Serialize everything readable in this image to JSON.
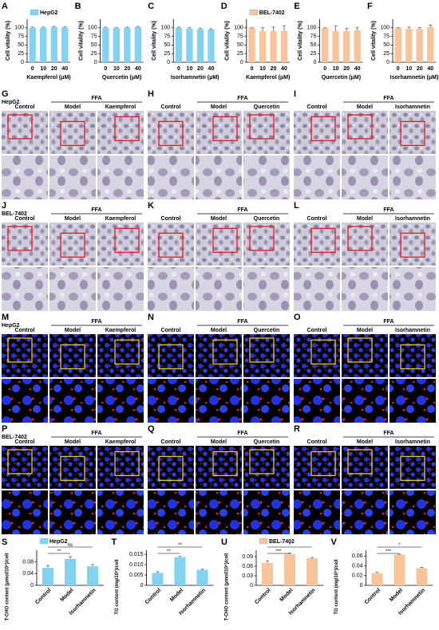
{
  "chart_data": [
    {
      "type": "bar",
      "label": "A",
      "legend": "HepG2",
      "color": "#83d2f2",
      "categories": [
        "0",
        "10",
        "20",
        "40"
      ],
      "values": [
        100,
        100,
        102,
        101
      ],
      "errors": [
        2,
        2,
        2,
        2
      ],
      "xlabel": "Kaempferol (μM)",
      "ylabel": "Cell vitality (%)",
      "ylim": [
        0,
        125
      ],
      "yticks": [
        0,
        25,
        50,
        75,
        100
      ]
    },
    {
      "type": "bar",
      "label": "B",
      "color": "#83d2f2",
      "categories": [
        "0",
        "10",
        "20",
        "40"
      ],
      "values": [
        100,
        99,
        100,
        102
      ],
      "errors": [
        2,
        2,
        2,
        2
      ],
      "xlabel": "Quercetin (μM)",
      "ylabel": "Cell vitality (%)",
      "ylim": [
        0,
        125
      ],
      "yticks": [
        0,
        25,
        50,
        75,
        100
      ]
    },
    {
      "type": "bar",
      "label": "C",
      "color": "#83d2f2",
      "categories": [
        "0",
        "10",
        "20",
        "40"
      ],
      "values": [
        100,
        98,
        96,
        95
      ],
      "errors": [
        2,
        3,
        3,
        2
      ],
      "xlabel": "Isorhamnetin (μM)",
      "ylabel": "Cell vitality (%)",
      "ylim": [
        0,
        125
      ],
      "yticks": [
        0,
        25,
        50,
        75,
        100
      ]
    },
    {
      "type": "bar",
      "label": "D",
      "legend": "BEL-7402",
      "color": "#f9c49a",
      "categories": [
        "0",
        "10",
        "20",
        "40"
      ],
      "values": [
        100,
        90,
        90,
        90
      ],
      "errors": [
        0,
        10,
        12,
        15
      ],
      "xlabel": "Kaempferol (μM)",
      "ylabel": "Cell vitality (%)",
      "ylim": [
        0,
        125
      ],
      "yticks": [
        0,
        25,
        50,
        75,
        100
      ]
    },
    {
      "type": "bar",
      "label": "E",
      "color": "#f9c49a",
      "categories": [
        "0",
        "10",
        "20",
        "40"
      ],
      "values": [
        100,
        90,
        90,
        93
      ],
      "errors": [
        0,
        15,
        8,
        8
      ],
      "xlabel": "Quercetin (μM)",
      "ylabel": "Cell vitality (%)",
      "ylim": [
        0,
        125
      ],
      "yticks": [
        0,
        25,
        50,
        75,
        100
      ]
    },
    {
      "type": "bar",
      "label": "F",
      "color": "#f9c49a",
      "categories": [
        "0",
        "10",
        "20",
        "40"
      ],
      "values": [
        100,
        97,
        97,
        103
      ],
      "errors": [
        0,
        5,
        4,
        5
      ],
      "xlabel": "Isorhamnetin (μM)",
      "ylabel": "Cell vitality (%)",
      "ylim": [
        0,
        125
      ],
      "yticks": [
        0,
        25,
        50,
        75,
        100
      ]
    },
    {
      "type": "bar",
      "label": "S",
      "legend": "HepG2",
      "color": "#83d2f2",
      "categories": [
        "Control",
        "Model",
        "Isorhamnetin"
      ],
      "values": [
        0.06,
        0.09,
        0.065
      ],
      "errors": [
        0.008,
        0.008,
        0.006
      ],
      "ylabel": "T-CHO content (μmol/10⁶)/cell",
      "ylim": [
        0,
        0.12
      ],
      "yticks": [
        0,
        0.04,
        0.08
      ],
      "annotations": [
        "**",
        "ns"
      ]
    },
    {
      "type": "bar",
      "label": "T",
      "color": "#83d2f2",
      "categories": [
        "Control",
        "Model",
        "Isorhamnetin"
      ],
      "values": [
        0.006,
        0.0137,
        0.0075
      ],
      "errors": [
        0.0006,
        0.0004,
        0.0003
      ],
      "ylabel": "TG content (mg/10⁶)/cell",
      "ylim": [
        0,
        0.017
      ],
      "yticks": [
        0,
        0.005,
        {
          "value": 0.01,
          "label": "0.010"
        },
        0.015
      ],
      "annotations": [
        "**",
        "**"
      ]
    },
    {
      "type": "bar",
      "label": "U",
      "legend": "BEL-7402",
      "color": "#f9c49a",
      "categories": [
        "Control",
        "Model",
        "Isorhamnetin"
      ],
      "values": [
        0.07,
        0.098,
        0.085
      ],
      "errors": [
        0.006,
        0.003,
        0.002
      ],
      "ylabel": "T-CHO content (μmol/10⁶)/cell",
      "ylim": [
        0,
        0.11
      ],
      "yticks": [
        0,
        0.03,
        0.06,
        0.09
      ],
      "annotations": [
        "***",
        "*"
      ]
    },
    {
      "type": "bar",
      "label": "V",
      "color": "#f9c49a",
      "categories": [
        "Control",
        "Model",
        "Isorhamnetin"
      ],
      "values": [
        0.025,
        0.063,
        0.035
      ],
      "errors": [
        0.002,
        0.001,
        0.002
      ],
      "ylabel": "TG content (mg/10⁶)/cell",
      "ylim": [
        0,
        0.072
      ],
      "yticks": [
        0,
        0.02,
        0.04,
        0.06
      ],
      "annotations": [
        "***",
        "*"
      ]
    }
  ],
  "image_panels": [
    {
      "label": "G",
      "cell_line": "HepG2",
      "group": "FFA",
      "columns": [
        "Control",
        "Model",
        "Kaempferol"
      ]
    },
    {
      "label": "H",
      "group": "FFA",
      "columns": [
        "Control",
        "Model",
        "Quercetin"
      ]
    },
    {
      "label": "I",
      "group": "FFA",
      "columns": [
        "Control",
        "Model",
        "Isorhamnetin"
      ]
    },
    {
      "label": "J",
      "cell_line": "BEL-7402",
      "group": "FFA",
      "columns": [
        "Control",
        "Model",
        "Kaempferol"
      ]
    },
    {
      "label": "K",
      "group": "FFA",
      "columns": [
        "Control",
        "Model",
        "Quercetin"
      ]
    },
    {
      "label": "L",
      "group": "FFA",
      "columns": [
        "Control",
        "Model",
        "Isorhamnetin"
      ]
    },
    {
      "label": "M",
      "cell_line": "HepG2",
      "group": "FFA",
      "columns": [
        "Control",
        "Model",
        "Kaempferol"
      ]
    },
    {
      "label": "N",
      "group": "FFA",
      "columns": [
        "Control",
        "Model",
        "Quercetin"
      ]
    },
    {
      "label": "O",
      "group": "FFA",
      "columns": [
        "Control",
        "Model",
        "Isorhamnetin"
      ]
    },
    {
      "label": "P",
      "cell_line": "BEL-7402",
      "group": "FFA",
      "columns": [
        "Control",
        "Model",
        "Kaempferol"
      ]
    },
    {
      "label": "Q",
      "group": "FFA",
      "columns": [
        "Control",
        "Model",
        "Quercetin"
      ]
    },
    {
      "label": "R",
      "group": "FFA",
      "columns": [
        "Control",
        "Model",
        "Isorhamnetin"
      ]
    }
  ]
}
